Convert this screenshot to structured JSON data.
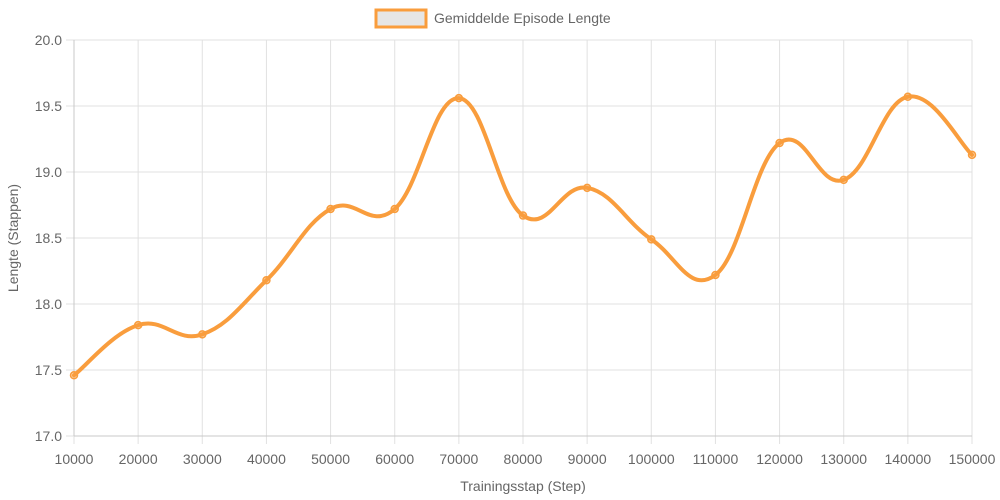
{
  "chart_data": {
    "type": "line",
    "legend_position": "top-center",
    "grid": true,
    "xlabel": "Trainingsstap (Step)",
    "ylabel": "Lengte (Stappen)",
    "x": [
      10000,
      20000,
      30000,
      40000,
      50000,
      60000,
      70000,
      80000,
      90000,
      100000,
      110000,
      120000,
      130000,
      140000,
      150000
    ],
    "x_tick_labels": [
      "10000",
      "20000",
      "30000",
      "40000",
      "50000",
      "60000",
      "70000",
      "80000",
      "90000",
      "100000",
      "110000",
      "120000",
      "130000",
      "140000",
      "150000"
    ],
    "ylim": [
      17.0,
      20.0
    ],
    "y_tick_labels": [
      "20.0",
      "19.5",
      "19.0",
      "18.5",
      "18.0",
      "17.5",
      "17.0"
    ],
    "series": [
      {
        "name": "Gemiddelde Episode Lengte",
        "color": "#f99d3d",
        "values": [
          17.46,
          17.84,
          17.77,
          18.18,
          18.72,
          18.72,
          19.56,
          18.67,
          18.88,
          18.49,
          18.22,
          19.22,
          18.94,
          19.57,
          19.13
        ]
      }
    ]
  }
}
